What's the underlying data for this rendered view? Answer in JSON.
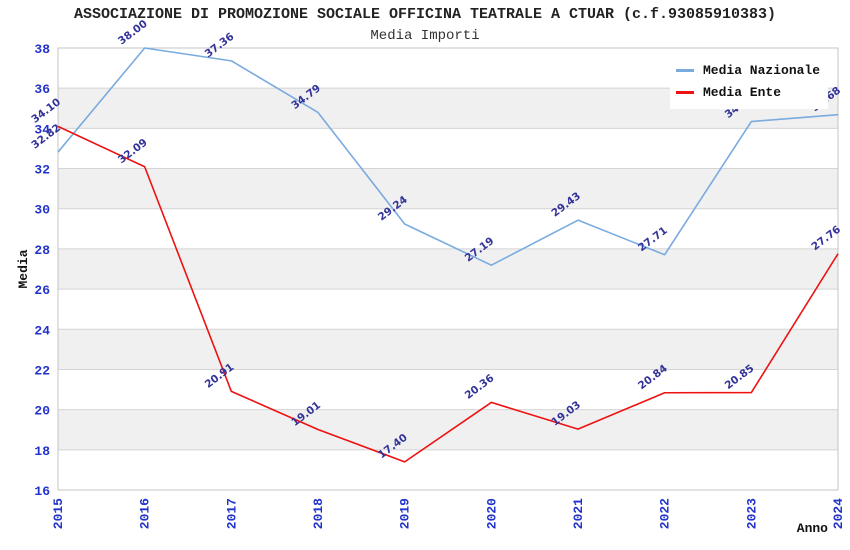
{
  "header": {
    "title": "ASSOCIAZIONE DI PROMOZIONE SOCIALE OFFICINA TEATRALE A CTUAR (c.f.93085910383)",
    "subtitle": "Media Importi"
  },
  "legend": {
    "items": [
      {
        "label": "Media Nazionale",
        "color": "#79abdf"
      },
      {
        "label": "Media Ente",
        "color": "#ee1111"
      }
    ]
  },
  "chart_data": {
    "type": "line",
    "title": "ASSOCIAZIONE DI PROMOZIONE SOCIALE OFFICINA TEATRALE A CTUAR (c.f.93085910383)",
    "subtitle": "Media Importi",
    "xlabel": "Anno",
    "ylabel": "Media",
    "categories": [
      "2015",
      "2016",
      "2017",
      "2018",
      "2019",
      "2020",
      "2021",
      "2022",
      "2023",
      "2024"
    ],
    "series": [
      {
        "name": "Media Nazionale",
        "color": "#79abdf",
        "values": [
          32.82,
          38.0,
          37.36,
          34.79,
          29.24,
          27.19,
          29.43,
          27.71,
          34.34,
          34.68
        ]
      },
      {
        "name": "Media Ente",
        "color": "#ee1111",
        "values": [
          34.1,
          32.09,
          20.91,
          19.01,
          17.4,
          20.36,
          19.03,
          20.84,
          20.85,
          27.76
        ]
      }
    ],
    "ylim": [
      16,
      38
    ],
    "ytick_step": 2,
    "yticks": [
      16,
      18,
      20,
      22,
      24,
      26,
      28,
      30,
      32,
      34,
      36,
      38
    ],
    "grid": true,
    "legend_position": "top-right",
    "value_label_decimals": 2,
    "band_color": "#f0f0f0",
    "grid_color": "#d4d4d4",
    "border_color": "#c4c4c4",
    "tick_color": "#2233cc",
    "point_label_color": "#333399",
    "axis_title_color": "#111111"
  }
}
